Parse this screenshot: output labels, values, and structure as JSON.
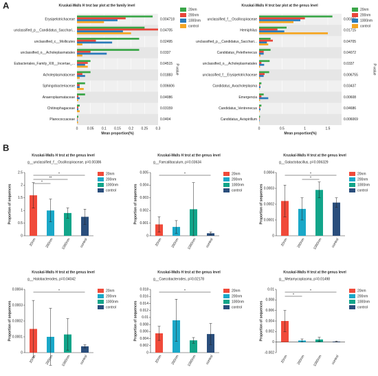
{
  "panel_labels": [
    "A",
    "B"
  ],
  "chart_data": [
    {
      "type": "bar",
      "orientation": "horizontal",
      "title": "Kruskal-Walls H test bar plot at the family level",
      "x_label": "Mean proportion(%)",
      "p_label": "P-value",
      "categories": [
        "Erysipelotrichaceae",
        "unclassified_p__Candidatus_Sacchari...",
        "unclassified_c__Mollicutes",
        "unclassified_o__Acholeplasmatales",
        "Eubacteriales_Family_XIII__Incertae_...",
        "Acholeplasmataceae",
        "Sphingobacteriaceae",
        "Anaeroplasmataceae",
        "Chitinophagaceae",
        "Planococcaceae"
      ],
      "p_values": [
        0.004718,
        0.04705,
        0.02495,
        0.0337,
        0.04515,
        0.01883,
        0.006606,
        0.04086,
        0.03159,
        0.0404
      ],
      "series": [
        {
          "name": "20nm",
          "color": "#3aa648",
          "values": [
            0.28,
            0.25,
            0.23,
            0.23,
            0.05,
            0.05,
            0.03,
            0.03,
            0.01,
            0.005
          ]
        },
        {
          "name": "200nm",
          "color": "#e8463a",
          "values": [
            0.18,
            0.3,
            0.07,
            0.05,
            0.04,
            0.02,
            0.01,
            0.005,
            0.005,
            0.002
          ]
        },
        {
          "name": "1000nm",
          "color": "#2b7bba",
          "values": [
            0.15,
            0.17,
            0.13,
            0.11,
            0.03,
            0.03,
            0.01,
            0.01,
            0.005,
            0.002
          ]
        },
        {
          "name": "control",
          "color": "#f5a623",
          "values": [
            0.1,
            0.2,
            0.02,
            0.02,
            0.04,
            0.01,
            0.025,
            0.005,
            0.01,
            0.004
          ]
        }
      ],
      "xlim": [
        0,
        0.3
      ],
      "xticks": [
        0,
        0.05,
        0.1,
        0.15,
        0.2,
        0.25,
        0.3
      ]
    },
    {
      "type": "bar",
      "orientation": "horizontal",
      "title": "Kruskal-Walls H test bar plot at the genus level",
      "x_label": "Mean proportion(%)",
      "p_label": "P-value",
      "categories": [
        "unclassified_f__Oscillospiraceae",
        "Hemiphilus",
        "unclassified_p__Candidatus_Sacchari...",
        "Candidatus_Pelethenecus",
        "unclassified_o__Acholeplasmatales",
        "unclassified_f__Erysipelotrichaceae",
        "Candidatus_Avacholeplasma",
        "Emergencia",
        "Candidatus_Ventrenecus",
        "Candidatus_Avispirillum"
      ],
      "p_values": [
        0.00386,
        0.01715,
        0.04705,
        0.04072,
        0.0337,
        0.006755,
        0.03437,
        0.00608,
        0.04686,
        0.006069
      ],
      "series": [
        {
          "name": "20nm",
          "color": "#3aa648",
          "values": [
            1.6,
            0.6,
            0.25,
            0.25,
            0.23,
            0.22,
            0.05,
            0.1,
            0.05,
            0.02
          ]
        },
        {
          "name": "200nm",
          "color": "#e8463a",
          "values": [
            1.0,
            0.4,
            0.3,
            0.1,
            0.05,
            0.12,
            0.02,
            0.05,
            0.02,
            0.01
          ]
        },
        {
          "name": "1000nm",
          "color": "#2b7bba",
          "values": [
            0.9,
            0.55,
            0.17,
            0.1,
            0.11,
            0.1,
            0.03,
            0.2,
            0.03,
            0.01
          ]
        },
        {
          "name": "control",
          "color": "#f5a623",
          "values": [
            0.75,
            1.5,
            0.2,
            0.03,
            0.02,
            0.02,
            0.01,
            0.02,
            0.01,
            0.005
          ]
        }
      ],
      "xlim": [
        0,
        1.8
      ],
      "xticks": [
        0,
        0.5,
        1,
        1.5
      ]
    },
    {
      "type": "bar",
      "title": "Kruskal-Walls H test at the genus level",
      "subtitle": "g__unclassified_f__Oscillospiraceae, p=0.00386",
      "y_label": "Proportion of sequences",
      "categories": [
        "20nm",
        "200nm",
        "1000nm",
        "control"
      ],
      "colors": [
        "#f04a3a",
        "#1aa8c8",
        "#12a58a",
        "#2a4e7c"
      ],
      "values": [
        1.6,
        1.0,
        0.9,
        0.75
      ],
      "errors": [
        0.5,
        0.45,
        0.2,
        0.3
      ],
      "ylim": [
        0,
        2.5
      ],
      "yticks": [
        0,
        0.5,
        1,
        1.5,
        2,
        2.5
      ],
      "annotations": [
        {
          "text": "*",
          "pair": [
            0,
            1
          ]
        },
        {
          "text": "**",
          "pair": [
            0,
            2
          ]
        },
        {
          "text": "*",
          "pair": [
            0,
            3
          ]
        }
      ]
    },
    {
      "type": "bar",
      "title": "Kruskal-Walls H test at the genus level",
      "subtitle": "g__Faecalibaculum, p=0.03634",
      "y_label": "Proportion of sequences",
      "categories": [
        "20nm",
        "200nm",
        "1000nm",
        "control"
      ],
      "colors": [
        "#f04a3a",
        "#1aa8c8",
        "#12a58a",
        "#2a4e7c"
      ],
      "values": [
        0.0009,
        0.0007,
        0.0021,
        0.0002
      ],
      "errors": [
        0.0006,
        0.0005,
        0.0021,
        0.0001
      ],
      "ylim": [
        0,
        0.005
      ],
      "yticks": [
        0,
        0.001,
        0.002,
        0.003,
        0.004,
        0.005
      ],
      "annotations": [
        {
          "text": "*",
          "pair": [
            0,
            3
          ]
        }
      ]
    },
    {
      "type": "bar",
      "title": "Kruskal-Walls H test at the genus level",
      "subtitle": "g__Galactobacillus, p=0.006329",
      "y_label": "Proportion of sequences",
      "categories": [
        "20nm",
        "200nm",
        "1000nm",
        "control"
      ],
      "colors": [
        "#f04a3a",
        "#1aa8c8",
        "#12a58a",
        "#2a4e7c"
      ],
      "values": [
        0.00022,
        0.00017,
        0.00029,
        0.00021
      ],
      "errors": [
        0.0001,
        7e-05,
        5e-05,
        3e-05
      ],
      "ylim": [
        0,
        0.0004
      ],
      "yticks": [
        0,
        0.0001,
        0.0002,
        0.0003,
        0.0004
      ],
      "annotations": [
        {
          "text": "*",
          "pair": [
            1,
            2
          ]
        },
        {
          "text": "*",
          "pair": [
            0,
            3
          ]
        }
      ]
    },
    {
      "type": "bar",
      "title": "Kruskal-Walls H test at the genus level",
      "subtitle": "g__Halobacterodes, p=0.04042",
      "y_label": "Proportion of sequences",
      "categories": [
        "20nm",
        "200nm",
        "1000nm",
        "control"
      ],
      "colors": [
        "#f04a3a",
        "#1aa8c8",
        "#12a58a",
        "#2a4e7c"
      ],
      "values": [
        0.00015,
        0.0001,
        0.000115,
        4e-05
      ],
      "errors": [
        0.00018,
        0.00018,
        0.0001,
        1e-05
      ],
      "ylim": [
        0,
        0.0004
      ],
      "yticks": [
        0,
        0.0001,
        0.0002,
        0.0003,
        0.0004
      ],
      "annotations": [
        {
          "text": "*",
          "pair": [
            0,
            3
          ]
        }
      ]
    },
    {
      "type": "bar",
      "title": "Kruskal-Walls H test at the genus level",
      "subtitle": "g__Caecobacterodes, p=0.02178",
      "y_label": "Proportion of sequences",
      "categories": [
        "20nm",
        "200nm",
        "1000nm",
        "control"
      ],
      "colors": [
        "#f04a3a",
        "#1aa8c8",
        "#12a58a",
        "#2a4e7c"
      ],
      "values": [
        0.0055,
        0.0092,
        0.0035,
        0.0053
      ],
      "errors": [
        0.002,
        0.006,
        0.0008,
        0.003
      ],
      "ylim": [
        0,
        0.018
      ],
      "yticks": [
        0,
        0.002,
        0.004,
        0.006,
        0.008,
        0.01,
        0.012,
        0.014,
        0.016,
        0.018
      ],
      "annotations": [
        {
          "text": "*",
          "pair": [
            0,
            3
          ]
        }
      ]
    },
    {
      "type": "bar",
      "title": "Kruskal-Walls H test at the genus level",
      "subtitle": "g__Metamycoplasma, p=0.01498",
      "y_label": "Proportion of sequences",
      "categories": [
        "20nm",
        "200nm",
        "1000nm",
        "control"
      ],
      "colors": [
        "#f04a3a",
        "#1aa8c8",
        "#12a58a",
        "#2a4e7c"
      ],
      "values": [
        0.004,
        0.0003,
        0.0005,
        0.0001
      ],
      "errors": [
        0.002,
        0.0003,
        0.0004,
        0.0001
      ],
      "ylim": [
        -0.002,
        0.01
      ],
      "yticks": [
        -0.002,
        0,
        0.002,
        0.004,
        0.006,
        0.008,
        0.01
      ],
      "annotations": [
        {
          "text": "*",
          "pair": [
            0,
            1
          ]
        },
        {
          "text": "*",
          "pair": [
            0,
            3
          ]
        }
      ]
    }
  ]
}
